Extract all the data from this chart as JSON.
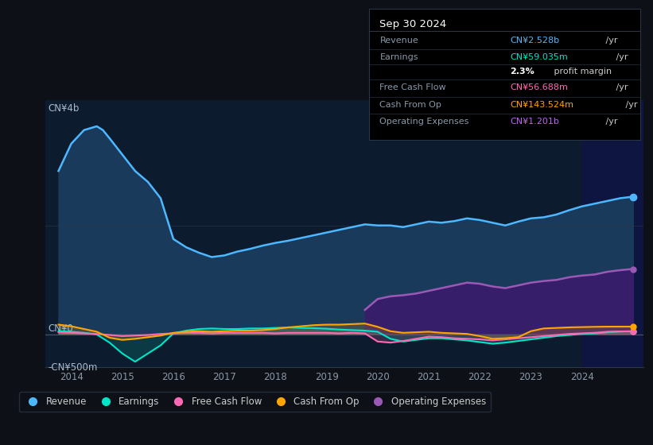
{
  "bg_color": "#0d1117",
  "plot_bg_color": "#0d1b2e",
  "title_box": {
    "date": "Sep 30 2024",
    "rows": [
      {
        "label": "Revenue",
        "value": "CN¥2.528b",
        "unit": " /yr",
        "color": "#4db8ff"
      },
      {
        "label": "Earnings",
        "value": "CN¥59.035m",
        "unit": " /yr",
        "color": "#00e5c8"
      },
      {
        "label": "",
        "value": "2.3%",
        "unit": " profit margin",
        "color": "#ffffff",
        "bold_val": true
      },
      {
        "label": "Free Cash Flow",
        "value": "CN¥56.688m",
        "unit": " /yr",
        "color": "#ff69b4"
      },
      {
        "label": "Cash From Op",
        "value": "CN¥143.524m",
        "unit": " /yr",
        "color": "#ffa500"
      },
      {
        "label": "Operating Expenses",
        "value": "CN¥1.201b",
        "unit": " /yr",
        "color": "#bf5fff"
      }
    ]
  },
  "y_label_top": "CN¥4b",
  "y_label_zero": "CN¥0",
  "y_label_neg": "-CN¥500m",
  "ylim": [
    -600000000.0,
    4300000000.0
  ],
  "xlim": [
    2013.5,
    2025.2
  ],
  "x_ticks": [
    2014,
    2015,
    2016,
    2017,
    2018,
    2019,
    2020,
    2021,
    2022,
    2023,
    2024
  ],
  "colors": {
    "revenue": "#4db8ff",
    "earnings": "#00e5c8",
    "free_cash_flow": "#ff69b4",
    "cash_from_op": "#ffa500",
    "operating_expenses": "#9b59b6"
  },
  "legend": [
    {
      "label": "Revenue",
      "color": "#4db8ff"
    },
    {
      "label": "Earnings",
      "color": "#00e5c8"
    },
    {
      "label": "Free Cash Flow",
      "color": "#ff69b4"
    },
    {
      "label": "Cash From Op",
      "color": "#ffa500"
    },
    {
      "label": "Operating Expenses",
      "color": "#9b59b6"
    }
  ],
  "shaded_region_start": 2024.0,
  "revenue_x": [
    2013.75,
    2014.0,
    2014.25,
    2014.5,
    2014.62,
    2014.75,
    2015.0,
    2015.25,
    2015.5,
    2015.75,
    2016.0,
    2016.25,
    2016.5,
    2016.75,
    2017.0,
    2017.25,
    2017.5,
    2017.75,
    2018.0,
    2018.25,
    2018.5,
    2018.75,
    2019.0,
    2019.25,
    2019.5,
    2019.75,
    2020.0,
    2020.25,
    2020.5,
    2020.75,
    2021.0,
    2021.25,
    2021.5,
    2021.75,
    2022.0,
    2022.25,
    2022.5,
    2022.75,
    2023.0,
    2023.25,
    2023.5,
    2023.75,
    2024.0,
    2024.25,
    2024.5,
    2024.75,
    2025.0
  ],
  "revenue_y": [
    3000000000.0,
    3500000000.0,
    3750000000.0,
    3820000000.0,
    3750000000.0,
    3600000000.0,
    3300000000.0,
    3000000000.0,
    2800000000.0,
    2500000000.0,
    1750000000.0,
    1600000000.0,
    1500000000.0,
    1420000000.0,
    1450000000.0,
    1520000000.0,
    1570000000.0,
    1630000000.0,
    1680000000.0,
    1720000000.0,
    1770000000.0,
    1820000000.0,
    1870000000.0,
    1920000000.0,
    1970000000.0,
    2020000000.0,
    2000000000.0,
    2000000000.0,
    1970000000.0,
    2020000000.0,
    2070000000.0,
    2050000000.0,
    2080000000.0,
    2130000000.0,
    2100000000.0,
    2050000000.0,
    2000000000.0,
    2070000000.0,
    2130000000.0,
    2150000000.0,
    2200000000.0,
    2280000000.0,
    2350000000.0,
    2400000000.0,
    2450000000.0,
    2500000000.0,
    2528000000.0
  ],
  "earnings_x": [
    2013.75,
    2014.0,
    2014.25,
    2014.5,
    2014.75,
    2015.0,
    2015.25,
    2015.5,
    2015.75,
    2016.0,
    2016.25,
    2016.5,
    2016.75,
    2017.0,
    2017.25,
    2017.5,
    2017.75,
    2018.0,
    2018.25,
    2018.5,
    2018.75,
    2019.0,
    2019.25,
    2019.5,
    2019.75,
    2020.0,
    2020.25,
    2020.5,
    2020.75,
    2021.0,
    2021.25,
    2021.5,
    2021.75,
    2022.0,
    2022.25,
    2022.5,
    2022.75,
    2023.0,
    2023.25,
    2023.5,
    2023.75,
    2024.0,
    2024.25,
    2024.5,
    2024.75,
    2025.0
  ],
  "earnings_y": [
    60000000.0,
    50000000.0,
    30000000.0,
    0,
    -150000000.0,
    -350000000.0,
    -500000000.0,
    -350000000.0,
    -200000000.0,
    20000000.0,
    70000000.0,
    100000000.0,
    110000000.0,
    100000000.0,
    100000000.0,
    110000000.0,
    110000000.0,
    120000000.0,
    130000000.0,
    120000000.0,
    115000000.0,
    105000000.0,
    90000000.0,
    80000000.0,
    70000000.0,
    50000000.0,
    -80000000.0,
    -130000000.0,
    -100000000.0,
    -70000000.0,
    -70000000.0,
    -90000000.0,
    -110000000.0,
    -140000000.0,
    -170000000.0,
    -150000000.0,
    -120000000.0,
    -90000000.0,
    -60000000.0,
    -30000000.0,
    -10000000.0,
    10000000.0,
    20000000.0,
    40000000.0,
    55000000.0,
    59035000.0
  ],
  "fcf_x": [
    2013.75,
    2014.0,
    2014.25,
    2014.5,
    2014.75,
    2015.0,
    2015.25,
    2015.5,
    2015.75,
    2016.0,
    2016.25,
    2016.5,
    2016.75,
    2017.0,
    2017.25,
    2017.5,
    2017.75,
    2018.0,
    2018.25,
    2018.5,
    2018.75,
    2019.0,
    2019.25,
    2019.5,
    2019.75,
    2020.0,
    2020.25,
    2020.5,
    2020.75,
    2021.0,
    2021.25,
    2021.5,
    2021.75,
    2022.0,
    2022.25,
    2022.5,
    2022.75,
    2023.0,
    2023.25,
    2023.5,
    2023.75,
    2024.0,
    2024.25,
    2024.5,
    2024.75,
    2025.0
  ],
  "fcf_y": [
    40000000.0,
    30000000.0,
    20000000.0,
    10000000.0,
    -10000000.0,
    -30000000.0,
    -20000000.0,
    -10000000.0,
    10000000.0,
    20000000.0,
    30000000.0,
    30000000.0,
    20000000.0,
    30000000.0,
    30000000.0,
    30000000.0,
    30000000.0,
    20000000.0,
    30000000.0,
    30000000.0,
    30000000.0,
    30000000.0,
    20000000.0,
    30000000.0,
    20000000.0,
    -130000000.0,
    -150000000.0,
    -120000000.0,
    -80000000.0,
    -40000000.0,
    -50000000.0,
    -70000000.0,
    -80000000.0,
    -90000000.0,
    -110000000.0,
    -90000000.0,
    -70000000.0,
    -50000000.0,
    -30000000.0,
    -10000000.0,
    10000000.0,
    20000000.0,
    30000000.0,
    50000000.0,
    55000000.0,
    56688000.0
  ],
  "cfo_x": [
    2013.75,
    2014.0,
    2014.25,
    2014.5,
    2014.75,
    2015.0,
    2015.25,
    2015.5,
    2015.75,
    2016.0,
    2016.25,
    2016.5,
    2016.75,
    2017.0,
    2017.25,
    2017.5,
    2017.75,
    2018.0,
    2018.25,
    2018.5,
    2018.75,
    2019.0,
    2019.25,
    2019.5,
    2019.75,
    2020.0,
    2020.25,
    2020.5,
    2020.75,
    2021.0,
    2021.25,
    2021.5,
    2021.75,
    2022.0,
    2022.25,
    2022.5,
    2022.75,
    2023.0,
    2023.25,
    2023.5,
    2023.75,
    2024.0,
    2024.25,
    2024.5,
    2024.75,
    2025.0
  ],
  "cfo_y": [
    180000000.0,
    150000000.0,
    100000000.0,
    50000000.0,
    -60000000.0,
    -100000000.0,
    -80000000.0,
    -50000000.0,
    -20000000.0,
    30000000.0,
    50000000.0,
    60000000.0,
    50000000.0,
    60000000.0,
    70000000.0,
    70000000.0,
    80000000.0,
    100000000.0,
    130000000.0,
    150000000.0,
    170000000.0,
    180000000.0,
    180000000.0,
    190000000.0,
    200000000.0,
    140000000.0,
    60000000.0,
    30000000.0,
    40000000.0,
    50000000.0,
    30000000.0,
    20000000.0,
    10000000.0,
    -30000000.0,
    -80000000.0,
    -70000000.0,
    -50000000.0,
    60000000.0,
    110000000.0,
    120000000.0,
    130000000.0,
    135000000.0,
    140000000.0,
    143000000.0,
    143524000.0,
    143524000.0
  ],
  "opex_x": [
    2019.75,
    2020.0,
    2020.25,
    2020.5,
    2020.75,
    2021.0,
    2021.25,
    2021.5,
    2021.75,
    2022.0,
    2022.25,
    2022.5,
    2022.75,
    2023.0,
    2023.25,
    2023.5,
    2023.75,
    2024.0,
    2024.25,
    2024.5,
    2024.75,
    2025.0
  ],
  "opex_y": [
    450000000.0,
    650000000.0,
    700000000.0,
    720000000.0,
    750000000.0,
    800000000.0,
    850000000.0,
    900000000.0,
    950000000.0,
    930000000.0,
    880000000.0,
    850000000.0,
    900000000.0,
    950000000.0,
    980000000.0,
    1000000000.0,
    1050000000.0,
    1080000000.0,
    1100000000.0,
    1150000000.0,
    1180000000.0,
    1201000000.0
  ]
}
